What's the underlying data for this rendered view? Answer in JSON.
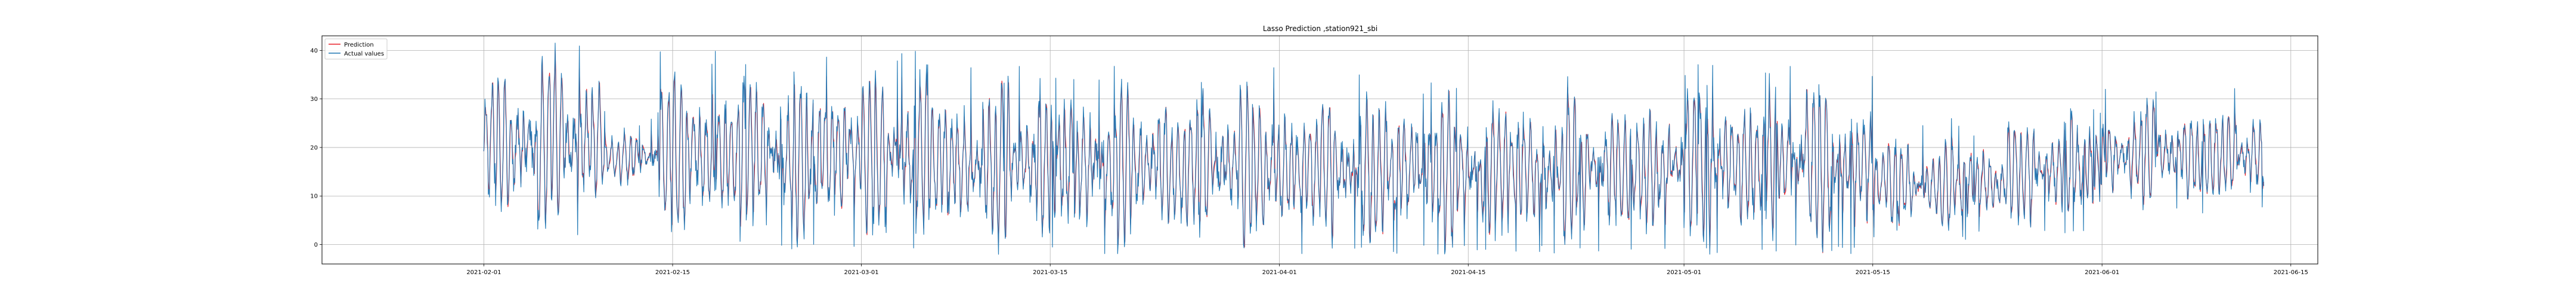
{
  "chart_data": {
    "type": "line",
    "title": "Lasso Prediction ,station921_sbi",
    "xlabel": "",
    "ylabel": "",
    "x_range": [
      "2021-01-20",
      "2021-06-17"
    ],
    "x_data_range": [
      "2021-02-01",
      "2021-06-13"
    ],
    "x_ticks": [
      "2021-02-01",
      "2021-02-15",
      "2021-03-01",
      "2021-03-15",
      "2021-04-01",
      "2021-04-15",
      "2021-05-01",
      "2021-05-15",
      "2021-06-01",
      "2021-06-15"
    ],
    "ylim": [
      -4,
      43
    ],
    "y_ticks": [
      0,
      10,
      20,
      30,
      40
    ],
    "grid": true,
    "legend_position": "top-left",
    "series": [
      {
        "name": "Prediction",
        "color": "#e8212a",
        "role": "prediction"
      },
      {
        "name": "Actual values",
        "color": "#1f77b4",
        "role": "actual"
      }
    ],
    "segments": [
      {
        "start": "2021-02-01",
        "end": "2021-02-10",
        "low": 4,
        "high": 38
      },
      {
        "start": "2021-02-10",
        "end": "2021-02-14",
        "low": 12,
        "high": 24
      },
      {
        "start": "2021-02-14",
        "end": "2021-03-06",
        "low": 1,
        "high": 36
      },
      {
        "start": "2021-03-06",
        "end": "2021-04-01",
        "low": 0,
        "high": 33
      },
      {
        "start": "2021-04-01",
        "end": "2021-05-01",
        "low": 0,
        "high": 31
      },
      {
        "start": "2021-05-01",
        "end": "2021-05-15",
        "low": 0,
        "high": 34
      },
      {
        "start": "2021-05-15",
        "end": "2021-05-25",
        "low": 3,
        "high": 22
      },
      {
        "start": "2021-05-25",
        "end": "2021-06-01",
        "low": 4,
        "high": 27
      },
      {
        "start": "2021-06-01",
        "end": "2021-06-13",
        "low": 8,
        "high": 29
      }
    ]
  }
}
